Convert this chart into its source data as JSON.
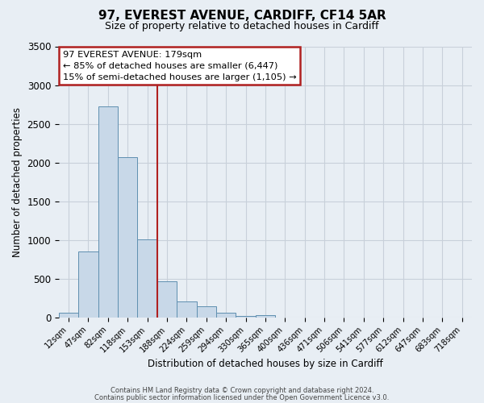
{
  "title": "97, EVEREST AVENUE, CARDIFF, CF14 5AR",
  "subtitle": "Size of property relative to detached houses in Cardiff",
  "bar_labels": [
    "12sqm",
    "47sqm",
    "82sqm",
    "118sqm",
    "153sqm",
    "188sqm",
    "224sqm",
    "259sqm",
    "294sqm",
    "330sqm",
    "365sqm",
    "400sqm",
    "436sqm",
    "471sqm",
    "506sqm",
    "541sqm",
    "577sqm",
    "612sqm",
    "647sqm",
    "683sqm",
    "718sqm"
  ],
  "bar_values": [
    55,
    850,
    2720,
    2070,
    1010,
    460,
    205,
    145,
    60,
    20,
    30,
    0,
    0,
    0,
    0,
    0,
    0,
    0,
    0,
    0,
    0
  ],
  "bar_color": "#c8d8e8",
  "bar_edge_color": "#5f8fb0",
  "vline_color": "#b02020",
  "vline_x_index": 5,
  "ylim": [
    0,
    3500
  ],
  "yticks": [
    0,
    500,
    1000,
    1500,
    2000,
    2500,
    3000,
    3500
  ],
  "ylabel": "Number of detached properties",
  "xlabel": "Distribution of detached houses by size in Cardiff",
  "annotation_title": "97 EVEREST AVENUE: 179sqm",
  "annotation_line1": "← 85% of detached houses are smaller (6,447)",
  "annotation_line2": "15% of semi-detached houses are larger (1,105) →",
  "annotation_box_color": "#b02020",
  "footer1": "Contains HM Land Registry data © Crown copyright and database right 2024.",
  "footer2": "Contains public sector information licensed under the Open Government Licence v3.0.",
  "fig_facecolor": "#e8eef4",
  "plot_facecolor": "#e8eef4",
  "grid_color": "#c8d0da",
  "title_fontsize": 11,
  "subtitle_fontsize": 9
}
